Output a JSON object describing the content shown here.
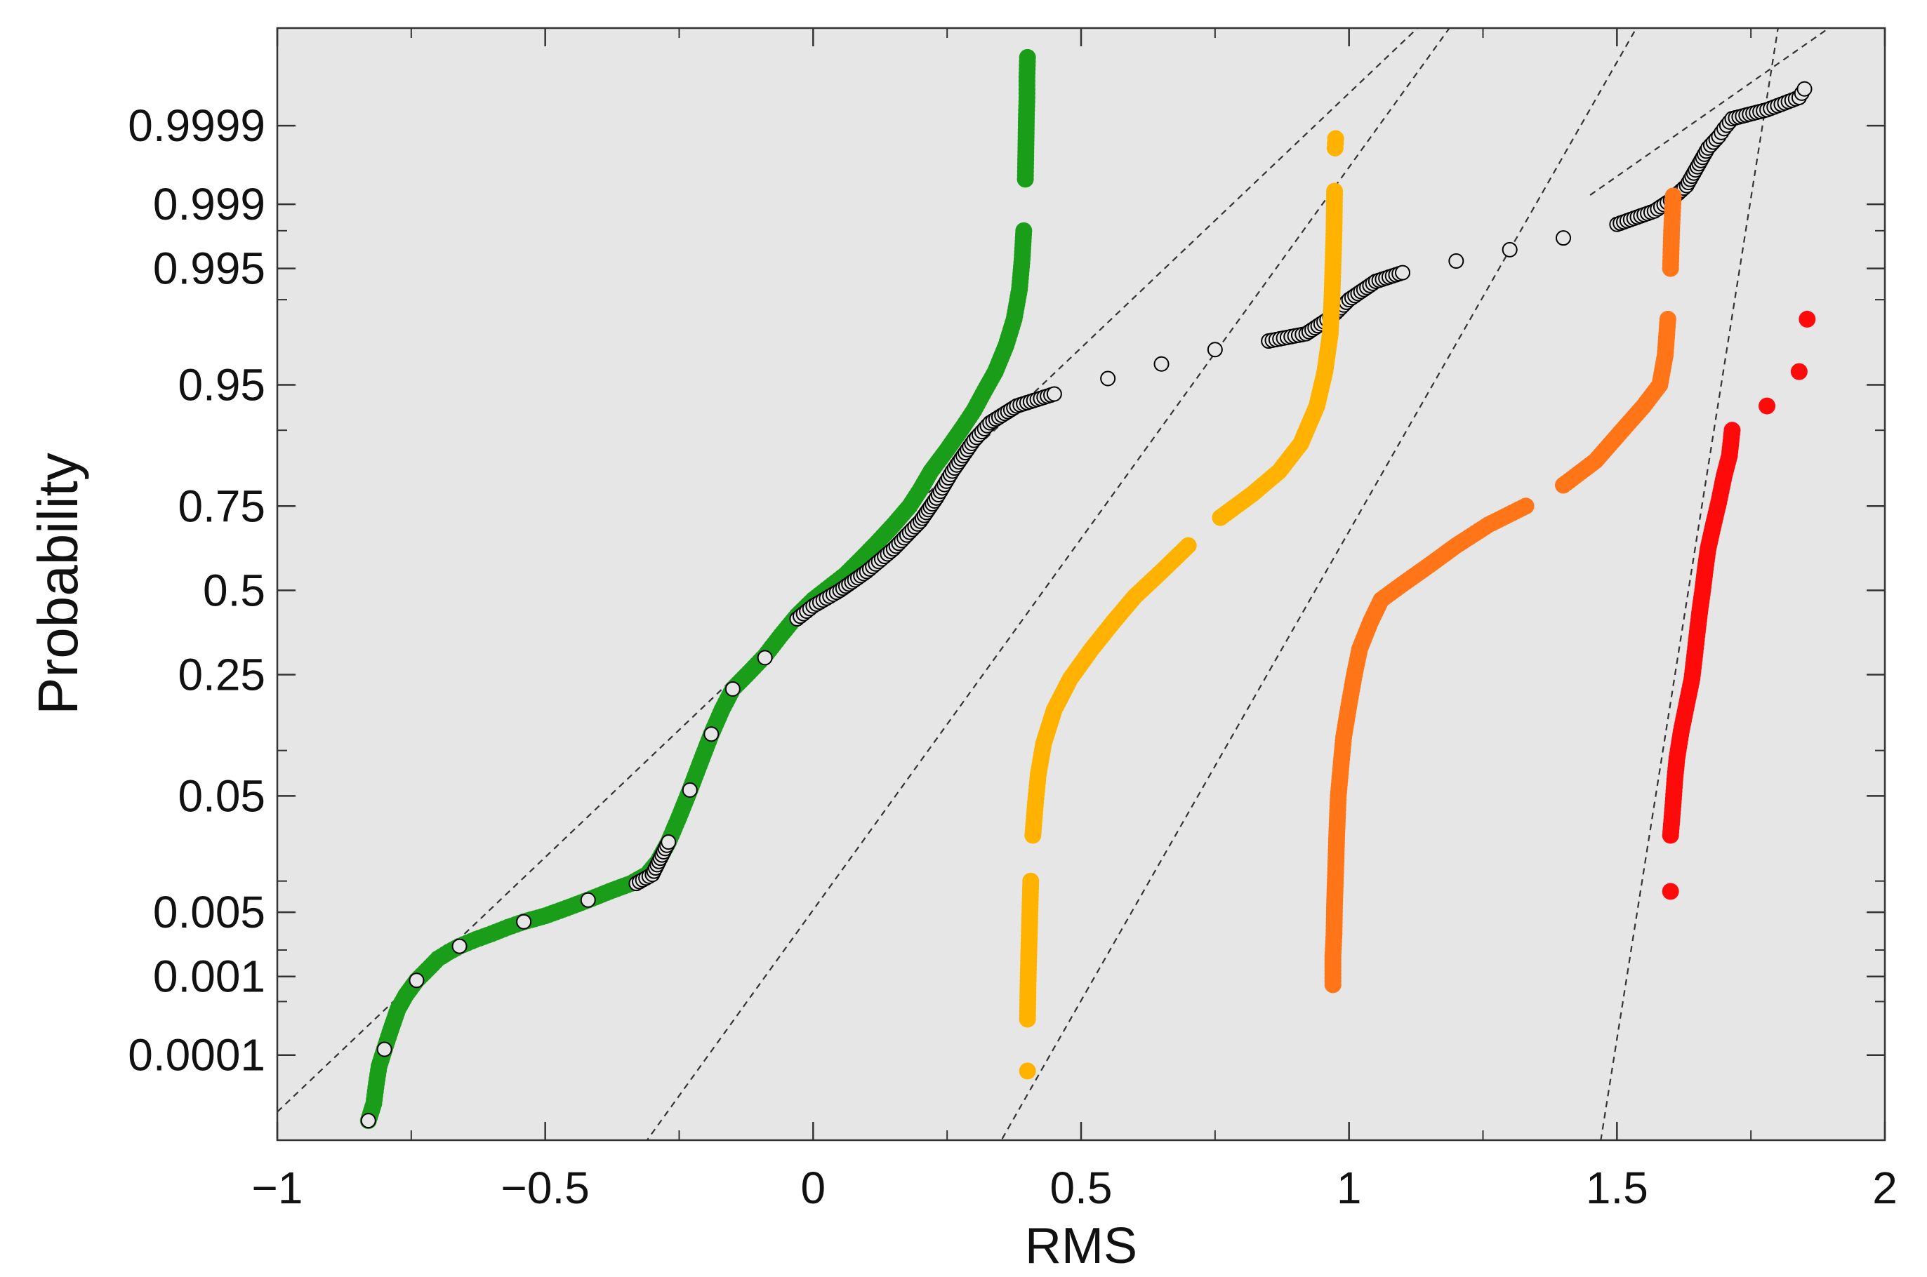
{
  "chart_data": {
    "type": "scatter",
    "title": "",
    "xlabel": "RMS",
    "ylabel": "Probability",
    "xlim": [
      -1,
      2
    ],
    "y_scale": "normal-probability",
    "grid": false,
    "legend": "none",
    "background": "#e6e6e6",
    "x_ticks": [
      {
        "value": -1,
        "label": "−1"
      },
      {
        "value": -0.5,
        "label": "−0.5"
      },
      {
        "value": 0,
        "label": "0"
      },
      {
        "value": 0.5,
        "label": "0.5"
      },
      {
        "value": 1,
        "label": "1"
      },
      {
        "value": 1.5,
        "label": "1.5"
      },
      {
        "value": 2,
        "label": "2"
      }
    ],
    "y_ticks": [
      {
        "value": 0.0001,
        "label": "0.0001"
      },
      {
        "value": 0.001,
        "label": "0.001"
      },
      {
        "value": 0.005,
        "label": "0.005"
      },
      {
        "value": 0.05,
        "label": "0.05"
      },
      {
        "value": 0.25,
        "label": "0.25"
      },
      {
        "value": 0.5,
        "label": "0.5"
      },
      {
        "value": 0.75,
        "label": "0.75"
      },
      {
        "value": 0.95,
        "label": "0.95"
      },
      {
        "value": 0.995,
        "label": "0.995"
      },
      {
        "value": 0.999,
        "label": "0.999"
      },
      {
        "value": 0.9999,
        "label": "0.9999"
      }
    ],
    "y_minor_ticks": [
      0.0005,
      0.002,
      0.01,
      0.1,
      0.9,
      0.99,
      0.998
    ],
    "series": [
      {
        "color": "#1a9e1a",
        "marker": "filled-circle",
        "points": [
          [
            -0.83,
            1.1e-05
          ],
          [
            -0.82,
            2e-05
          ],
          [
            -0.815,
            4e-05
          ],
          [
            -0.81,
            7e-05
          ],
          [
            -0.8,
            0.00012
          ],
          [
            -0.79,
            0.0002
          ],
          [
            -0.775,
            0.0004
          ],
          [
            -0.76,
            0.0006
          ],
          [
            -0.74,
            0.0009
          ],
          [
            -0.72,
            0.0012
          ],
          [
            -0.7,
            0.0016
          ],
          [
            -0.68,
            0.0019
          ],
          [
            -0.66,
            0.0022
          ],
          [
            -0.63,
            0.0026
          ],
          [
            -0.6,
            0.003
          ],
          [
            -0.57,
            0.0035
          ],
          [
            -0.54,
            0.004
          ],
          [
            -0.5,
            0.0046
          ],
          [
            -0.46,
            0.0055
          ],
          [
            -0.42,
            0.0066
          ],
          [
            -0.38,
            0.008
          ],
          [
            -0.34,
            0.0095
          ],
          [
            -0.31,
            0.0115
          ],
          [
            -0.29,
            0.015
          ],
          [
            -0.27,
            0.022
          ],
          [
            -0.25,
            0.035
          ],
          [
            -0.23,
            0.055
          ],
          [
            -0.21,
            0.085
          ],
          [
            -0.19,
            0.125
          ],
          [
            -0.17,
            0.17
          ],
          [
            -0.15,
            0.215
          ],
          [
            -0.12,
            0.255
          ],
          [
            -0.09,
            0.3
          ],
          [
            -0.06,
            0.36
          ],
          [
            -0.03,
            0.42
          ],
          [
            0.0,
            0.47
          ],
          [
            0.03,
            0.51
          ],
          [
            0.06,
            0.55
          ],
          [
            0.09,
            0.6
          ],
          [
            0.12,
            0.65
          ],
          [
            0.15,
            0.7
          ],
          [
            0.18,
            0.75
          ],
          [
            0.2,
            0.79
          ],
          [
            0.22,
            0.83
          ],
          [
            0.25,
            0.87
          ],
          [
            0.28,
            0.905
          ],
          [
            0.3,
            0.925
          ],
          [
            0.32,
            0.945
          ],
          [
            0.34,
            0.96
          ],
          [
            0.36,
            0.975
          ],
          [
            0.375,
            0.985
          ],
          [
            0.385,
            0.992
          ],
          [
            0.39,
            0.996
          ],
          [
            0.393,
            0.998
          ],
          [
            0.396,
            0.9995
          ],
          [
            0.397,
            0.9998
          ],
          [
            0.398,
            0.99993
          ],
          [
            0.399,
            0.99996
          ],
          [
            0.399,
            0.99998
          ],
          [
            0.4,
            0.99999
          ]
        ]
      },
      {
        "color": "#000000",
        "marker": "open-circle",
        "points": [
          [
            -0.83,
            1.1e-05
          ],
          [
            -0.8,
            0.00012
          ],
          [
            -0.74,
            0.0009
          ],
          [
            -0.66,
            0.0022
          ],
          [
            -0.54,
            0.004
          ],
          [
            -0.42,
            0.0066
          ],
          [
            -0.33,
            0.0095
          ],
          [
            -0.3,
            0.0115
          ],
          [
            -0.27,
            0.022
          ],
          [
            -0.23,
            0.055
          ],
          [
            -0.19,
            0.125
          ],
          [
            -0.15,
            0.215
          ],
          [
            -0.09,
            0.295
          ],
          [
            -0.03,
            0.41
          ],
          [
            0.0,
            0.45
          ],
          [
            0.05,
            0.5
          ],
          [
            0.1,
            0.56
          ],
          [
            0.15,
            0.63
          ],
          [
            0.2,
            0.71
          ],
          [
            0.23,
            0.77
          ],
          [
            0.26,
            0.83
          ],
          [
            0.3,
            0.885
          ],
          [
            0.33,
            0.91
          ],
          [
            0.38,
            0.93
          ],
          [
            0.45,
            0.942
          ],
          [
            0.55,
            0.955
          ],
          [
            0.65,
            0.965
          ],
          [
            0.75,
            0.973
          ],
          [
            0.85,
            0.977
          ],
          [
            0.92,
            0.98
          ],
          [
            0.97,
            0.986
          ],
          [
            1.0,
            0.99
          ],
          [
            1.05,
            0.9933
          ],
          [
            1.1,
            0.9945
          ],
          [
            1.2,
            0.9958
          ],
          [
            1.3,
            0.9968
          ],
          [
            1.4,
            0.9976
          ],
          [
            1.5,
            0.9983
          ],
          [
            1.57,
            0.9988
          ],
          [
            1.6,
            0.9991
          ],
          [
            1.63,
            0.9994
          ],
          [
            1.65,
            0.99965
          ],
          [
            1.67,
            0.9998
          ],
          [
            1.69,
            0.99986
          ],
          [
            1.7,
            0.99989
          ],
          [
            1.715,
            0.99992
          ],
          [
            1.78,
            0.99994
          ],
          [
            1.84,
            0.99996
          ],
          [
            1.85,
            0.99997
          ]
        ]
      },
      {
        "color": "#ffb300",
        "marker": "filled-circle",
        "points": [
          [
            0.4,
            6e-05
          ],
          [
            0.4,
            0.0003
          ],
          [
            0.401,
            0.0008
          ],
          [
            0.402,
            0.0015
          ],
          [
            0.404,
            0.004
          ],
          [
            0.406,
            0.01
          ],
          [
            0.41,
            0.025
          ],
          [
            0.415,
            0.045
          ],
          [
            0.42,
            0.07
          ],
          [
            0.43,
            0.11
          ],
          [
            0.45,
            0.17
          ],
          [
            0.48,
            0.24
          ],
          [
            0.52,
            0.32
          ],
          [
            0.56,
            0.4
          ],
          [
            0.6,
            0.48
          ],
          [
            0.65,
            0.56
          ],
          [
            0.7,
            0.64
          ],
          [
            0.76,
            0.72
          ],
          [
            0.82,
            0.78
          ],
          [
            0.87,
            0.83
          ],
          [
            0.91,
            0.88
          ],
          [
            0.94,
            0.93
          ],
          [
            0.955,
            0.96
          ],
          [
            0.965,
            0.98
          ],
          [
            0.968,
            0.99
          ],
          [
            0.97,
            0.995
          ],
          [
            0.972,
            0.998
          ],
          [
            0.973,
            0.9993
          ],
          [
            0.974,
            0.9998
          ],
          [
            0.975,
            0.99985
          ]
        ]
      },
      {
        "color": "#ff7518",
        "marker": "filled-circle",
        "points": [
          [
            0.97,
            0.0008
          ],
          [
            0.97,
            0.0017
          ],
          [
            0.972,
            0.003
          ],
          [
            0.973,
            0.006
          ],
          [
            0.975,
            0.012
          ],
          [
            0.977,
            0.025
          ],
          [
            0.98,
            0.05
          ],
          [
            0.985,
            0.08
          ],
          [
            0.99,
            0.12
          ],
          [
            1.0,
            0.18
          ],
          [
            1.01,
            0.25
          ],
          [
            1.02,
            0.32
          ],
          [
            1.04,
            0.4
          ],
          [
            1.06,
            0.47
          ],
          [
            1.1,
            0.52
          ],
          [
            1.15,
            0.58
          ],
          [
            1.2,
            0.64
          ],
          [
            1.26,
            0.7
          ],
          [
            1.33,
            0.75
          ],
          [
            1.4,
            0.8
          ],
          [
            1.46,
            0.85
          ],
          [
            1.51,
            0.9
          ],
          [
            1.55,
            0.93
          ],
          [
            1.58,
            0.95
          ],
          [
            1.59,
            0.97
          ],
          [
            1.595,
            0.985
          ],
          [
            1.6,
            0.995
          ],
          [
            1.602,
            0.998
          ],
          [
            1.605,
            0.9992
          ]
        ]
      },
      {
        "color": "#ff0a0a",
        "marker": "filled-circle",
        "points": [
          [
            1.6,
            0.008
          ],
          [
            1.6,
            0.025
          ],
          [
            1.605,
            0.045
          ],
          [
            1.608,
            0.065
          ],
          [
            1.612,
            0.09
          ],
          [
            1.62,
            0.13
          ],
          [
            1.63,
            0.18
          ],
          [
            1.64,
            0.24
          ],
          [
            1.645,
            0.3
          ],
          [
            1.65,
            0.37
          ],
          [
            1.655,
            0.44
          ],
          [
            1.66,
            0.5
          ],
          [
            1.665,
            0.57
          ],
          [
            1.67,
            0.63
          ],
          [
            1.68,
            0.7
          ],
          [
            1.69,
            0.76
          ],
          [
            1.7,
            0.82
          ],
          [
            1.71,
            0.86
          ],
          [
            1.715,
            0.9
          ],
          [
            1.78,
            0.93
          ],
          [
            1.84,
            0.96
          ],
          [
            1.855,
            0.985
          ]
        ]
      }
    ],
    "reference_lines": [
      {
        "color": "#333333",
        "style": "dashed",
        "points": [
          [
            -1,
            1.5e-05
          ],
          [
            1.19,
            0.999999
          ]
        ]
      },
      {
        "color": "#333333",
        "style": "dashed",
        "points": [
          [
            -0.4,
            4e-07
          ],
          [
            1.23,
            0.999999
          ]
        ]
      },
      {
        "color": "#333333",
        "style": "dashed",
        "points": [
          [
            0.28,
            4e-07
          ],
          [
            1.57,
            0.999999
          ]
        ]
      },
      {
        "color": "#333333",
        "style": "dashed",
        "points": [
          [
            1.45,
            4e-07
          ],
          [
            1.81,
            0.999999
          ]
        ]
      },
      {
        "color": "#333333",
        "style": "dashed",
        "points": [
          [
            1.45,
            0.99922
          ],
          [
            1.98,
            0.999999
          ]
        ]
      }
    ]
  }
}
